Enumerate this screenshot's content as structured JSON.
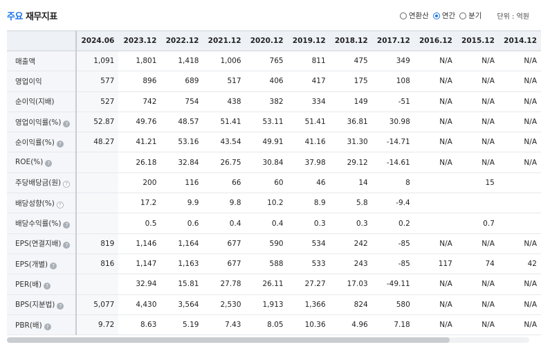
{
  "header": {
    "title_accent": "주요",
    "title_rest": " 재무지표",
    "unit": "단위 : 억원"
  },
  "period_options": [
    {
      "label": "연환산",
      "checked": false
    },
    {
      "label": "연간",
      "checked": true
    },
    {
      "label": "분기",
      "checked": false
    }
  ],
  "columns": [
    "2024.06",
    "2023.12",
    "2022.12",
    "2021.12",
    "2020.12",
    "2019.12",
    "2018.12",
    "2017.12",
    "2016.12",
    "2015.12",
    "2014.12"
  ],
  "rows": [
    {
      "label": "매출액",
      "help": "",
      "values": [
        "1,091",
        "1,801",
        "1,418",
        "1,006",
        "765",
        "811",
        "475",
        "349",
        "N/A",
        "N/A",
        "N/A"
      ]
    },
    {
      "label": "영업이익",
      "help": "",
      "values": [
        "577",
        "896",
        "689",
        "517",
        "406",
        "417",
        "175",
        "108",
        "N/A",
        "N/A",
        "N/A"
      ]
    },
    {
      "label": "순이익(지배)",
      "help": "",
      "values": [
        "527",
        "742",
        "754",
        "438",
        "382",
        "334",
        "149",
        "-51",
        "N/A",
        "N/A",
        "N/A"
      ]
    },
    {
      "label": "영업이익률(%)",
      "help": "filled",
      "values": [
        "52.87",
        "49.76",
        "48.57",
        "51.41",
        "53.11",
        "51.41",
        "36.81",
        "30.98",
        "N/A",
        "N/A",
        "N/A"
      ]
    },
    {
      "label": "순이익률(%)",
      "help": "filled",
      "values": [
        "48.27",
        "41.21",
        "53.16",
        "43.54",
        "49.91",
        "41.16",
        "31.30",
        "-14.71",
        "N/A",
        "N/A",
        "N/A"
      ]
    },
    {
      "label": "ROE(%)",
      "help": "filled",
      "values": [
        "",
        "26.18",
        "32.84",
        "26.75",
        "30.84",
        "37.98",
        "29.12",
        "-14.61",
        "N/A",
        "N/A",
        "N/A"
      ]
    },
    {
      "label": "주당배당금(원)",
      "help": "outline",
      "values": [
        "",
        "200",
        "116",
        "66",
        "60",
        "46",
        "14",
        "8",
        "",
        "15",
        ""
      ]
    },
    {
      "label": "배당성향(%)",
      "help": "outline",
      "values": [
        "",
        "17.2",
        "9.9",
        "9.8",
        "10.2",
        "8.9",
        "5.8",
        "-9.4",
        "",
        "",
        ""
      ]
    },
    {
      "label": "배당수익률(%)",
      "help": "filled",
      "values": [
        "",
        "0.5",
        "0.6",
        "0.4",
        "0.4",
        "0.3",
        "0.3",
        "0.2",
        "",
        "0.7",
        ""
      ]
    },
    {
      "label": "EPS(연결지배)",
      "help": "filled",
      "values": [
        "819",
        "1,146",
        "1,164",
        "677",
        "590",
        "534",
        "242",
        "-85",
        "N/A",
        "N/A",
        "N/A"
      ]
    },
    {
      "label": "EPS(개별)",
      "help": "filled",
      "values": [
        "816",
        "1,147",
        "1,163",
        "677",
        "588",
        "533",
        "243",
        "-85",
        "117",
        "74",
        "42"
      ]
    },
    {
      "label": "PER(배)",
      "help": "filled",
      "values": [
        "",
        "32.94",
        "15.81",
        "27.78",
        "26.11",
        "27.27",
        "17.03",
        "-49.11",
        "N/A",
        "N/A",
        "N/A"
      ]
    },
    {
      "label": "BPS(지분법)",
      "help": "filled",
      "values": [
        "5,077",
        "4,430",
        "3,564",
        "2,530",
        "1,913",
        "1,366",
        "824",
        "580",
        "N/A",
        "N/A",
        "N/A"
      ]
    },
    {
      "label": "PBR(배)",
      "help": "filled",
      "values": [
        "9.72",
        "8.63",
        "5.19",
        "7.43",
        "8.05",
        "10.36",
        "4.96",
        "7.18",
        "N/A",
        "N/A",
        "N/A"
      ]
    }
  ],
  "help_glyph": "?"
}
